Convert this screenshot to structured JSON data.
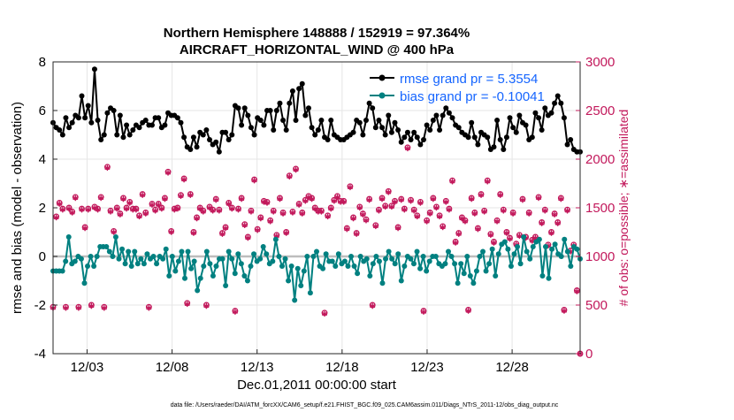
{
  "chart_data": {
    "type": "line",
    "title": [
      "Northern Hemisphere 148888 / 152919 = 97.364%",
      "AIRCRAFT_HORIZONTAL_WIND @ 400 hPa"
    ],
    "xlabel": "Dec.01,2011 00:00:00 start",
    "ylabel": "rmse and bias (model - observation)",
    "ylabel_right": "# of obs: o=possible; ∗=assimilated",
    "x_tick_labels": [
      "12/03",
      "12/08",
      "12/13",
      "12/18",
      "12/23",
      "12/28"
    ],
    "x_tick_days": [
      3,
      8,
      13,
      18,
      23,
      28
    ],
    "xlim": [
      1,
      32
    ],
    "ylim": [
      -4,
      8
    ],
    "y_ticks": [
      -4,
      -2,
      0,
      2,
      4,
      6,
      8
    ],
    "ylim_right": [
      0,
      3000
    ],
    "y_ticks_right": [
      0,
      500,
      1000,
      1500,
      2000,
      2500,
      3000
    ],
    "grid": true,
    "legend_position": "top-right",
    "footer": "data file: /Users/raeder/DAI/ATM_forcXX/CAM6_setup/f.e21.FHIST_BGC.f09_025.CAM6assim.011/Diags_NTrS_2011-12/obs_diag_output.nc",
    "series": [
      {
        "name": "rmse grand pr = 5.3554",
        "color": "#000000",
        "marker": "filled-circle",
        "values": [
          5.5,
          5.3,
          5.2,
          5.0,
          5.7,
          5.3,
          5.5,
          5.8,
          5.7,
          6.6,
          5.7,
          6.2,
          5.5,
          7.7,
          5.6,
          4.8,
          5.0,
          5.9,
          6.1,
          6.0,
          5.0,
          5.8,
          4.9,
          5.4,
          5.0,
          5.2,
          5.4,
          5.3,
          5.5,
          5.6,
          5.4,
          5.4,
          5.7,
          5.7,
          5.3,
          5.4,
          5.9,
          5.8,
          5.8,
          5.7,
          5.5,
          4.9,
          4.5,
          4.4,
          4.9,
          4.5,
          5.1,
          5.0,
          5.2,
          4.8,
          4.6,
          4.7,
          4.3,
          5.1,
          5.1,
          4.8,
          5.0,
          6.2,
          6.1,
          5.4,
          6.1,
          5.8,
          5.3,
          5.0,
          5.7,
          5.6,
          5.4,
          6.0,
          6.0,
          5.2,
          6.0,
          6.3,
          5.6,
          5.2,
          6.3,
          6.8,
          5.6,
          6.9,
          7.1,
          5.8,
          6.1,
          5.3,
          5.0,
          5.2,
          5.6,
          4.9,
          4.8,
          5.6,
          5.0,
          4.9,
          4.8,
          4.8,
          4.9,
          5.0,
          5.1,
          5.6,
          5.5,
          5.0,
          5.6,
          6.3,
          6.1,
          5.3,
          5.6,
          5.3,
          5.0,
          5.8,
          5.1,
          5.5,
          5.2,
          4.7,
          4.9,
          5.1,
          4.8,
          5.1,
          4.9,
          4.6,
          4.8,
          5.4,
          5.2,
          5.6,
          5.8,
          5.2,
          5.8,
          6.1,
          5.9,
          5.7,
          5.4,
          5.3,
          5.1,
          5.0,
          4.9,
          5.5,
          4.9,
          4.6,
          5.1,
          5.0,
          4.9,
          4.4,
          4.5,
          5.6,
          4.8,
          4.4,
          4.9,
          5.7,
          5.3,
          5.1,
          5.8,
          5.5,
          5.4,
          4.8,
          4.9,
          5.9,
          5.7,
          5.2,
          6.1,
          5.8,
          5.9,
          6.3,
          6.6,
          6.3,
          5.7,
          4.6,
          4.8,
          4.4,
          4.3,
          4.3
        ]
      },
      {
        "name": "bias grand pr = -0.10041",
        "color": "#008080",
        "marker": "filled-circle",
        "values": [
          -0.6,
          -0.6,
          -0.6,
          -0.6,
          -0.2,
          0.8,
          -0.3,
          -0.2,
          0.0,
          -0.1,
          -1.1,
          -0.4,
          0.0,
          -0.4,
          0.0,
          0.4,
          0.4,
          0.4,
          0.2,
          0.0,
          0.8,
          -0.1,
          0.3,
          -0.3,
          0.2,
          -0.4,
          0.2,
          -0.3,
          -0.1,
          -0.3,
          0.1,
          -0.1,
          0.0,
          -0.3,
          0.0,
          -0.1,
          0.3,
          -0.8,
          0.0,
          -0.6,
          -0.2,
          0.2,
          -0.9,
          0.2,
          -0.5,
          -0.2,
          -1.4,
          -0.9,
          -0.4,
          0.2,
          -0.3,
          -0.8,
          -0.4,
          -0.1,
          -0.1,
          -1.2,
          0.2,
          -0.1,
          -0.7,
          0.1,
          -0.3,
          -0.8,
          -1.0,
          -0.4,
          0.1,
          -0.2,
          -0.1,
          0.4,
          0.1,
          -0.3,
          -0.2,
          0.7,
          0.0,
          -0.4,
          -0.1,
          -1.0,
          -0.4,
          -1.8,
          -0.5,
          -1.2,
          -0.6,
          0.0,
          -1.5,
          0.0,
          0.2,
          -0.4,
          -0.5,
          0.1,
          -0.2,
          -0.2,
          -0.4,
          0.1,
          -0.3,
          -0.2,
          -0.4,
          0.0,
          -0.4,
          -0.7,
          0.0,
          -0.2,
          -0.1,
          -0.8,
          -0.3,
          0.0,
          -0.2,
          -1.1,
          -0.1,
          0.2,
          -0.1,
          -0.3,
          0.1,
          -1.0,
          -0.4,
          0.0,
          -0.1,
          -0.3,
          0.2,
          -0.5,
          0.0,
          -0.6,
          -0.2,
          0.0,
          0.0,
          -0.3,
          -0.4,
          -0.3,
          0.2,
          0.0,
          -0.3,
          -1.1,
          -0.3,
          -0.7,
          0.0,
          -0.8,
          -1.1,
          -0.6,
          0.0,
          0.2,
          -0.6,
          -0.3,
          0.3,
          -0.8,
          0.1,
          0.5,
          0.6,
          0.3,
          -0.4,
          0.1,
          0.4,
          -0.3,
          0.8,
          0.2,
          -0.1,
          0.4,
          0.6,
          0.7,
          -0.8,
          0.4,
          -0.9,
          0.3,
          0.5,
          0.1,
          0.0,
          0.7,
          0.2,
          -0.4,
          0.4,
          0.3,
          -0.1
        ]
      },
      {
        "name": "# of obs possible",
        "color": "#c2185b",
        "marker": "circle-open",
        "axis": "right",
        "values": [
          480,
          1410,
          1550,
          1490,
          480,
          1500,
          1460,
          1610,
          480,
          1490,
          1300,
          1490,
          500,
          1510,
          1490,
          1610,
          480,
          1920,
          1470,
          1260,
          1500,
          1440,
          1600,
          1500,
          1560,
          1490,
          1490,
          1420,
          1640,
          1450,
          480,
          1540,
          1480,
          1540,
          1500,
          1600,
          1870,
          1260,
          1490,
          1500,
          1630,
          1800,
          520,
          1640,
          1250,
          1400,
          1500,
          1470,
          500,
          1510,
          1480,
          1590,
          1480,
          1240,
          1300,
          1550,
          1500,
          440,
          1490,
          1600,
          1330,
          1200,
          1470,
          1790,
          1280,
          1400,
          1570,
          1560,
          1370,
          1470,
          1220,
          1600,
          1450,
          1250,
          1830,
          1460,
          1900,
          1540,
          1450,
          1580,
          1620,
          1600,
          1500,
          1470,
          1470,
          420,
          1420,
          1500,
          1580,
          1620,
          1570,
          1570,
          1290,
          1720,
          1400,
          1240,
          1510,
          1440,
          1380,
          1590,
          500,
          1320,
          1480,
          1600,
          1520,
          1670,
          1520,
          1570,
          1300,
          1590,
          1490,
          2120,
          1580,
          1480,
          1420,
          1560,
          440,
          1370,
          1450,
          1600,
          1510,
          1420,
          1310,
          1570,
          1490,
          1780,
          1150,
          1240,
          1400,
          1370,
          450,
          1600,
          1450,
          1290,
          1640,
          1470,
          1780,
          1230,
          1150,
          1370,
          1640,
          1480,
          1250,
          1190,
          1450,
          1130,
          1220,
          1590,
          1200,
          1450,
          1170,
          1200,
          1610,
          1350,
          1480,
          1120,
          1250,
          1440,
          1350,
          1600,
          450,
          1480,
          1060,
          1120,
          650,
          0
        ]
      },
      {
        "name": "# of obs assimilated",
        "color": "#c2185b",
        "marker": "asterisk",
        "axis": "right",
        "values": [
          470,
          1400,
          1540,
          1480,
          470,
          1490,
          1450,
          1600,
          470,
          1480,
          1290,
          1480,
          490,
          1500,
          1480,
          1600,
          470,
          1910,
          1460,
          1250,
          1490,
          1430,
          1590,
          1490,
          1550,
          1480,
          1480,
          1410,
          1630,
          1440,
          470,
          1530,
          1470,
          1530,
          1490,
          1590,
          1860,
          1250,
          1480,
          1490,
          1620,
          1790,
          510,
          1630,
          1240,
          1390,
          1490,
          1460,
          490,
          1500,
          1470,
          1580,
          1470,
          1230,
          1290,
          1540,
          1490,
          430,
          1480,
          1590,
          1320,
          1190,
          1460,
          1780,
          1270,
          1390,
          1560,
          1550,
          1360,
          1460,
          1210,
          1590,
          1440,
          1240,
          1820,
          1450,
          1890,
          1530,
          1440,
          1570,
          1610,
          1590,
          1490,
          1460,
          1460,
          410,
          1410,
          1490,
          1570,
          1610,
          1560,
          1560,
          1280,
          1710,
          1390,
          1230,
          1500,
          1430,
          1370,
          1580,
          490,
          1310,
          1470,
          1590,
          1510,
          1660,
          1510,
          1560,
          1290,
          1580,
          1480,
          2110,
          1570,
          1470,
          1410,
          1550,
          430,
          1360,
          1440,
          1590,
          1500,
          1410,
          1300,
          1560,
          1480,
          1770,
          1140,
          1230,
          1390,
          1360,
          440,
          1590,
          1440,
          1280,
          1630,
          1460,
          1770,
          1220,
          1140,
          1360,
          1630,
          1470,
          1240,
          1180,
          1440,
          1120,
          1210,
          1580,
          1190,
          1440,
          1160,
          1190,
          1600,
          1340,
          1470,
          1110,
          1240,
          1430,
          1340,
          1590,
          440,
          1470,
          1050,
          1110,
          640,
          0
        ]
      }
    ]
  }
}
